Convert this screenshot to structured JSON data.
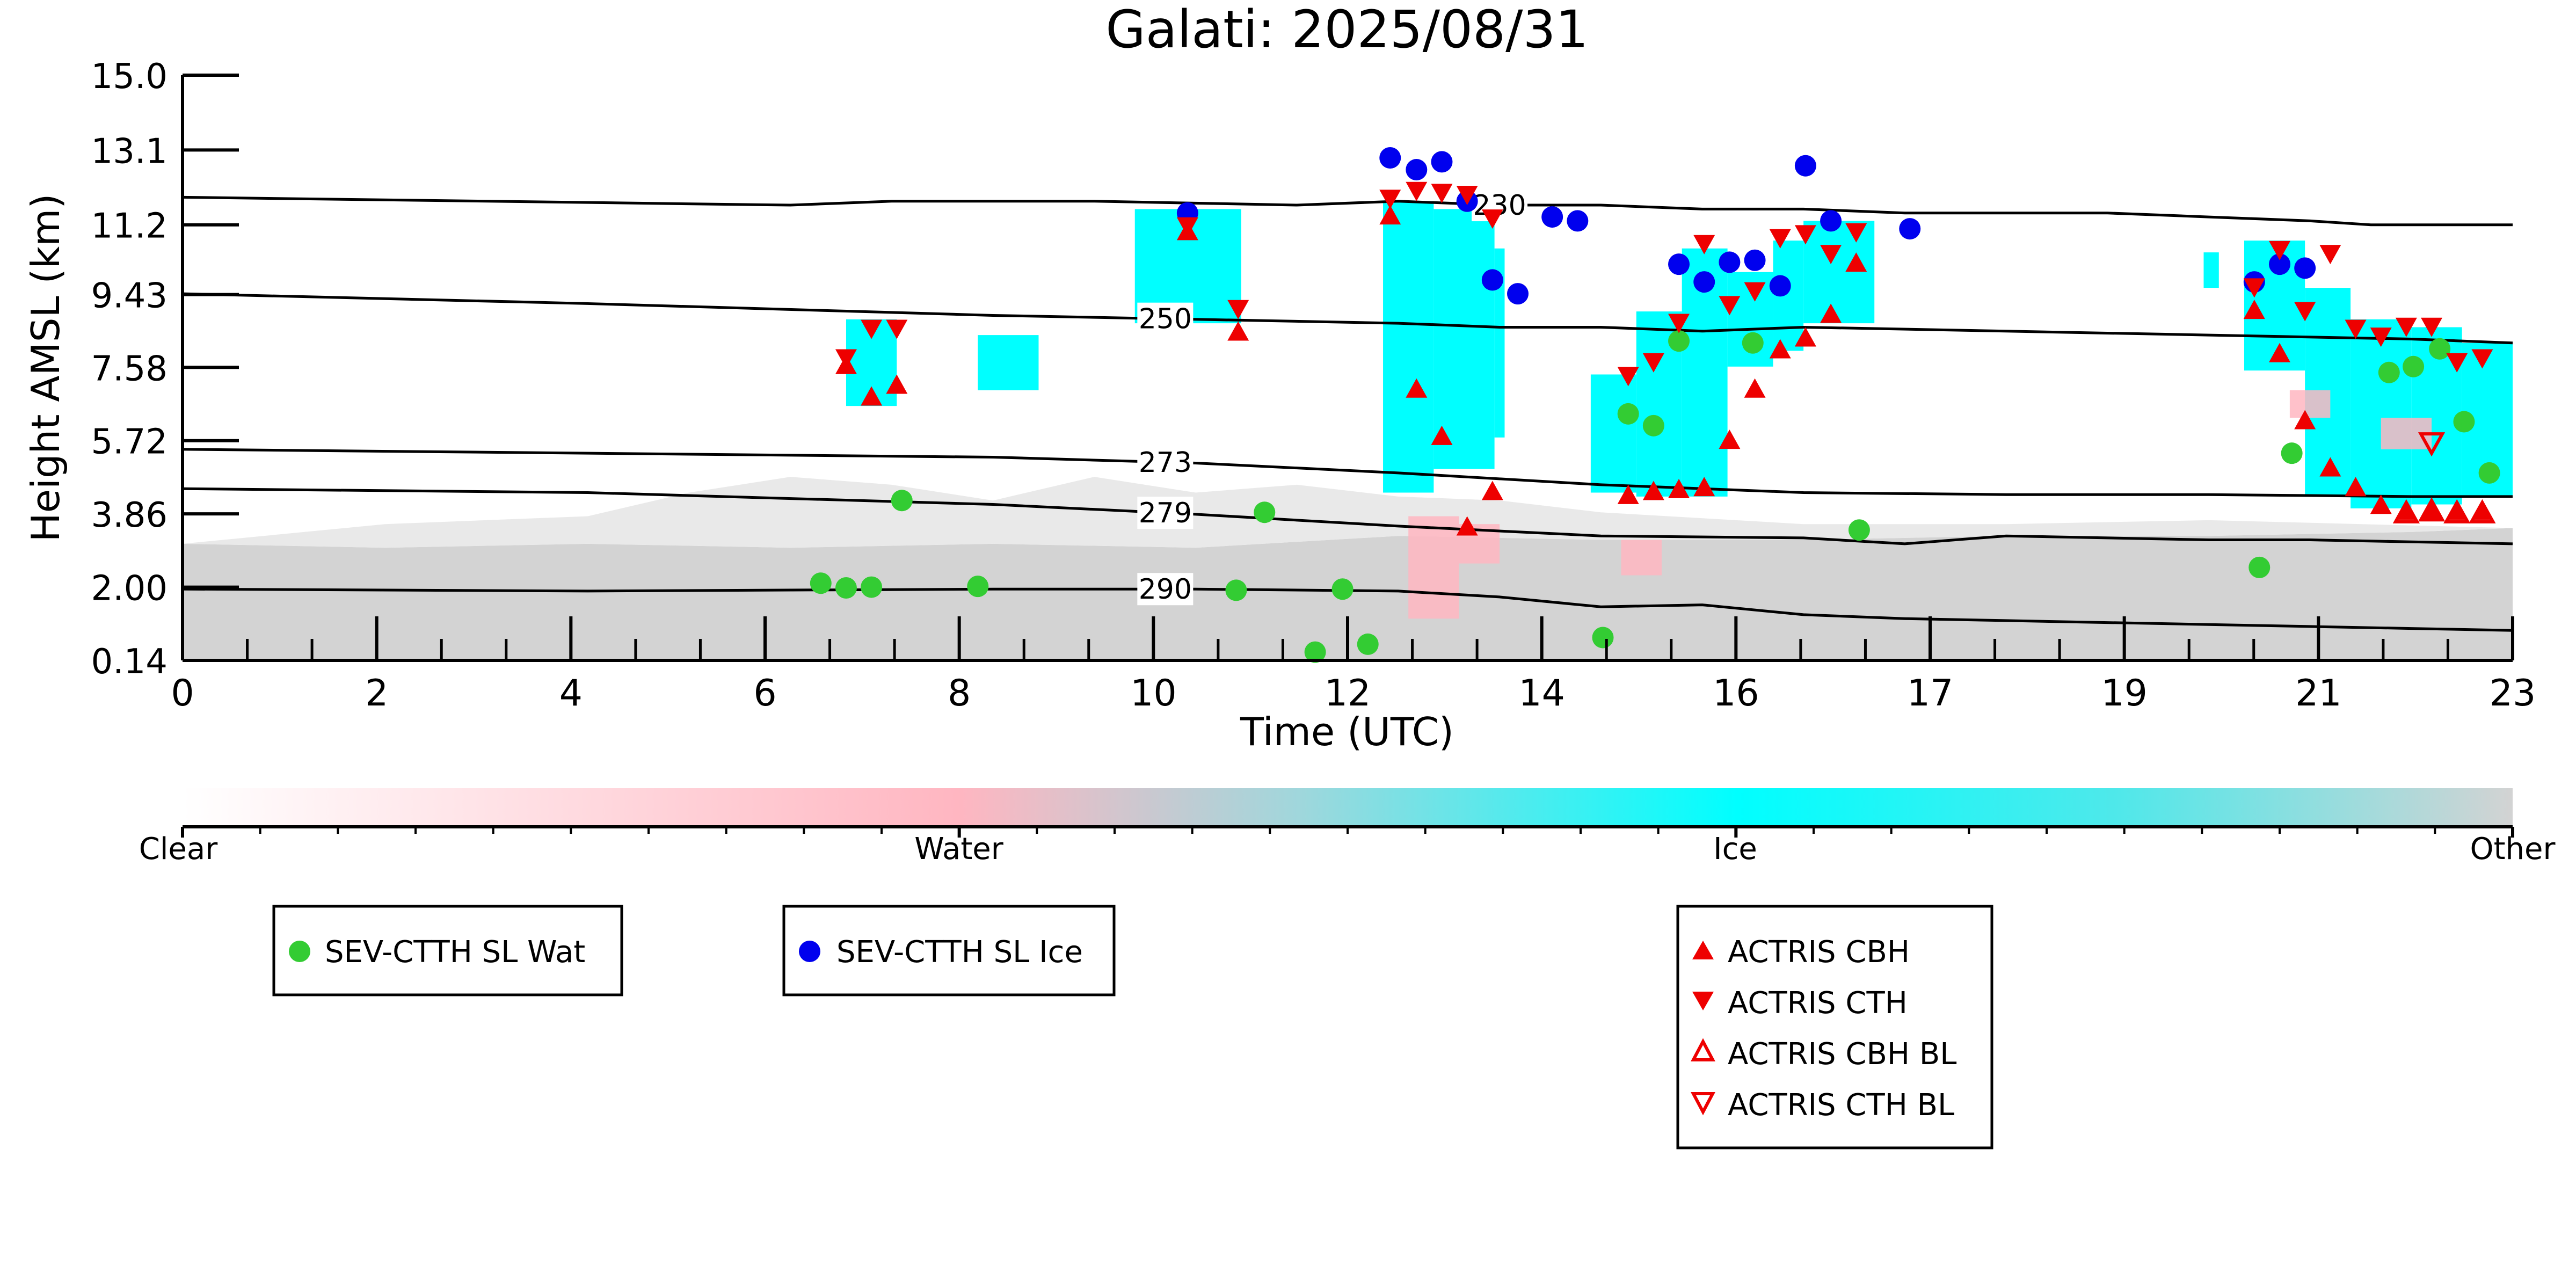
{
  "chart_data": {
    "type": "scatter",
    "title": "Galati: 2025/08/31",
    "xlabel": "Time (UTC)",
    "ylabel": "Height AMSL (km)",
    "xlim": [
      0,
      23
    ],
    "ylim": [
      0.14,
      15.0
    ],
    "xticks": [
      "0",
      "2",
      "4",
      "6",
      "8",
      "10",
      "12",
      "14",
      "16",
      "17",
      "19",
      "21",
      "23"
    ],
    "yticks": [
      "0.14",
      "2.00",
      "3.86",
      "5.72",
      "7.58",
      "9.43",
      "11.2",
      "13.1",
      "15.0"
    ],
    "colorbar": {
      "labels": [
        "Clear",
        "Water",
        "Ice",
        "Other"
      ],
      "colors": [
        "#ffffff",
        "#ffb6c1",
        "#00ffff",
        "#d3d3d3"
      ]
    },
    "contours": [
      {
        "label": "230",
        "x": [
          0,
          6,
          7,
          9,
          11,
          12,
          13,
          14,
          15,
          16,
          17,
          18,
          19,
          20,
          21,
          21.6,
          22,
          23
        ],
        "y": [
          11.9,
          11.7,
          11.8,
          11.8,
          11.7,
          11.8,
          11.7,
          11.7,
          11.6,
          11.6,
          11.5,
          11.5,
          11.5,
          11.4,
          11.3,
          11.2,
          11.2,
          11.2
        ]
      },
      {
        "label": "250",
        "x": [
          0,
          4,
          8,
          10,
          12,
          13,
          14,
          15,
          16,
          18,
          20,
          22,
          23
        ],
        "y": [
          9.45,
          9.2,
          8.9,
          8.8,
          8.7,
          8.6,
          8.6,
          8.5,
          8.6,
          8.5,
          8.4,
          8.3,
          8.2
        ]
      },
      {
        "label": "273",
        "x": [
          0,
          4,
          8,
          10,
          12,
          14,
          16,
          18,
          20,
          22,
          23
        ],
        "y": [
          5.5,
          5.4,
          5.3,
          5.15,
          4.9,
          4.6,
          4.4,
          4.35,
          4.35,
          4.3,
          4.3
        ]
      },
      {
        "label": "279",
        "x": [
          0,
          4,
          8,
          10,
          12,
          14,
          16,
          17,
          18,
          19,
          20,
          21,
          22,
          23
        ],
        "y": [
          4.5,
          4.4,
          4.1,
          3.85,
          3.55,
          3.3,
          3.25,
          3.1,
          3.3,
          3.25,
          3.2,
          3.2,
          3.15,
          3.1
        ]
      },
      {
        "label": "290",
        "x": [
          0,
          4,
          8,
          10,
          12,
          13,
          14,
          15,
          16,
          17,
          18,
          19,
          20,
          21,
          22,
          23
        ],
        "y": [
          1.95,
          1.9,
          1.95,
          1.95,
          1.9,
          1.75,
          1.5,
          1.55,
          1.3,
          1.2,
          1.15,
          1.1,
          1.05,
          1.0,
          0.95,
          0.9
        ]
      }
    ],
    "series": [
      {
        "name": "SEV-CTTH SL Wat",
        "color": "#33cc33",
        "marker": "circle",
        "filled": true,
        "x": [
          6.3,
          6.55,
          6.8,
          7.1,
          7.85,
          10.4,
          10.68,
          11.18,
          11.45,
          11.7,
          14.02,
          14.27,
          14.52,
          14.77,
          15.5,
          16.55,
          20.5,
          20.82,
          21.78,
          22.02,
          22.28,
          22.52,
          22.77
        ],
        "y": [
          2.1,
          1.98,
          2.0,
          4.2,
          2.02,
          1.92,
          3.9,
          0.35,
          1.95,
          0.55,
          0.72,
          6.4,
          6.1,
          8.25,
          8.2,
          3.45,
          2.5,
          5.4,
          7.45,
          7.6,
          8.05,
          6.2,
          4.9
        ]
      },
      {
        "name": "SEV-CTTH SL Ice",
        "color": "#0000ee",
        "marker": "circle",
        "filled": true,
        "x": [
          9.92,
          11.92,
          12.18,
          12.43,
          12.68,
          12.93,
          13.18,
          13.52,
          13.77,
          14.77,
          15.02,
          15.27,
          15.52,
          15.77,
          16.02,
          16.27,
          17.05,
          20.45,
          20.7,
          20.95
        ],
        "y": [
          11.5,
          12.9,
          12.6,
          12.8,
          11.8,
          9.8,
          9.45,
          11.4,
          11.3,
          10.2,
          9.75,
          10.25,
          10.3,
          9.65,
          12.7,
          11.3,
          11.1,
          9.75,
          10.2,
          10.1
        ]
      },
      {
        "name": "ACTRIS CBH",
        "color": "#ee0000",
        "marker": "triangle-up",
        "filled": true,
        "x": [
          6.55,
          6.8,
          7.05,
          9.92,
          10.42,
          11.92,
          12.18,
          12.43,
          12.68,
          12.93,
          14.27,
          14.52,
          14.77,
          15.02,
          15.27,
          15.52,
          15.77,
          16.02,
          16.27,
          16.52,
          20.45,
          20.7,
          20.95,
          21.2,
          21.45,
          21.7,
          21.95,
          22.2,
          22.45,
          22.7
        ],
        "y": [
          7.6,
          6.8,
          7.1,
          11.0,
          8.45,
          11.4,
          7.0,
          5.8,
          3.5,
          4.4,
          4.3,
          4.4,
          4.45,
          4.5,
          5.7,
          7.0,
          8.0,
          8.3,
          8.9,
          10.2,
          9.0,
          7.9,
          6.2,
          5.0,
          4.5,
          4.05,
          3.9,
          3.9,
          3.9,
          3.9
        ]
      },
      {
        "name": "ACTRIS CTH",
        "color": "#ee0000",
        "marker": "triangle-down",
        "filled": true,
        "x": [
          6.55,
          6.8,
          7.05,
          9.92,
          10.42,
          11.92,
          12.18,
          12.43,
          12.68,
          12.93,
          14.27,
          14.52,
          14.77,
          15.02,
          15.27,
          15.52,
          15.77,
          16.02,
          16.27,
          16.52,
          20.45,
          20.7,
          20.95,
          21.2,
          21.45,
          21.7,
          21.95,
          22.2,
          22.45,
          22.7
        ],
        "y": [
          7.85,
          8.6,
          8.6,
          11.2,
          9.1,
          11.9,
          12.1,
          12.05,
          12.0,
          11.4,
          7.4,
          7.75,
          8.75,
          10.75,
          9.2,
          9.55,
          10.9,
          11.0,
          10.5,
          11.05,
          9.65,
          10.6,
          9.05,
          10.5,
          8.6,
          8.4,
          8.65,
          8.65,
          7.75,
          7.85
        ]
      },
      {
        "name": "ACTRIS CBH BL",
        "color": "#ee0000",
        "marker": "triangle-up",
        "filled": false,
        "x": [
          21.95,
          22.2,
          22.45,
          22.7
        ],
        "y": [
          3.85,
          3.9,
          3.85,
          3.85
        ]
      },
      {
        "name": "ACTRIS CTH BL",
        "color": "#ee0000",
        "marker": "triangle-down",
        "filled": false,
        "x": [
          22.2
        ],
        "y": [
          5.7
        ]
      }
    ],
    "legend": [
      {
        "label": "SEV-CTTH SL Wat"
      },
      {
        "label": "SEV-CTTH SL Ice"
      },
      {
        "label": "ACTRIS CBH"
      },
      {
        "label": "ACTRIS CTH"
      },
      {
        "label": "ACTRIS CBH BL"
      },
      {
        "label": "ACTRIS CTH BL"
      }
    ]
  }
}
